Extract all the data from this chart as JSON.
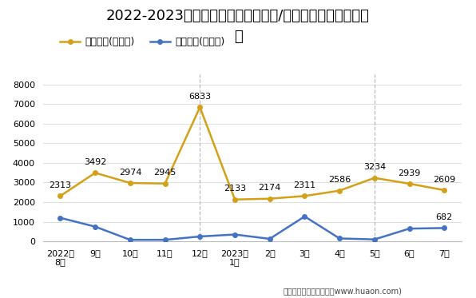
{
  "title_line1": "2022-2023年石河子市（境内目的地/货源地）进、出口额统",
  "title_line2": "计",
  "xlabel_ticks": [
    "2022年\n8月",
    "9月",
    "10月",
    "11月",
    "12月",
    "2023年\n1月",
    "2月",
    "3月",
    "4月",
    "5月",
    "6月",
    "7月"
  ],
  "export_values": [
    2313,
    3492,
    2974,
    2945,
    6833,
    2133,
    2174,
    2311,
    2586,
    3234,
    2939,
    2609
  ],
  "import_values": [
    1200,
    750,
    80,
    80,
    250,
    350,
    130,
    1270,
    150,
    100,
    650,
    682
  ],
  "export_label": "出口总额(万美元)",
  "import_label": "进口总额(万美元)",
  "export_color": "#D4A017",
  "import_color": "#4472C4",
  "ylim": [
    0,
    8500
  ],
  "yticks": [
    0,
    1000,
    2000,
    3000,
    4000,
    5000,
    6000,
    7000,
    8000
  ],
  "bg_color": "#FFFFFF",
  "footer": "制图：华经产业研究院（www.huaon.com)",
  "title_fontsize": 13,
  "legend_fontsize": 9,
  "tick_fontsize": 8,
  "annotation_fontsize": 8,
  "footer_fontsize": 7,
  "vline_positions": [
    4,
    9
  ],
  "vline_color": "#BBBBBB",
  "vline_style": "--",
  "import_annotate_idx": 11,
  "import_annotate_val": 682
}
